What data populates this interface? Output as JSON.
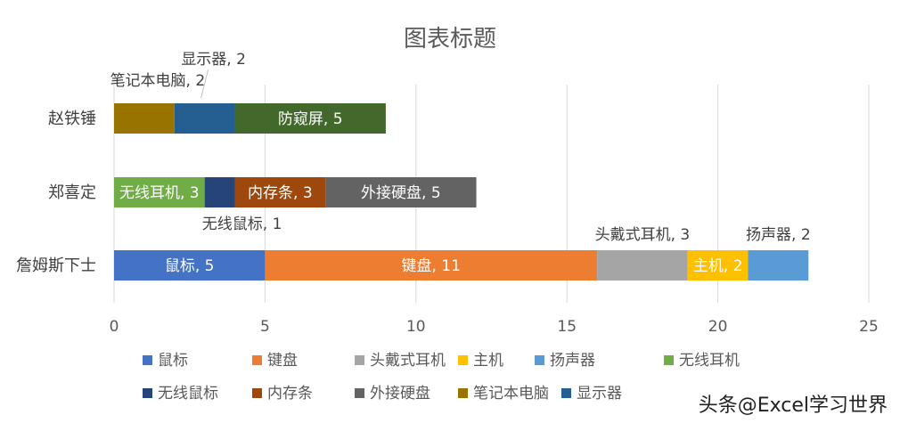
{
  "watermark": "头条@Excel学习世界",
  "chart_data": {
    "type": "bar",
    "orientation": "horizontal",
    "stacked": true,
    "title": "图表标题",
    "categories": [
      "詹姆斯下士",
      "郑喜定",
      "赵铁锤"
    ],
    "xlim": [
      0,
      25
    ],
    "xticks": [
      0,
      5,
      10,
      15,
      20,
      25
    ],
    "grid": true,
    "legend_position": "bottom",
    "series": [
      {
        "name": "鼠标",
        "color": "#4472C4",
        "values": [
          5,
          0,
          0
        ],
        "labels": [
          "鼠标, 5",
          "",
          ""
        ]
      },
      {
        "name": "键盘",
        "color": "#ED7D31",
        "values": [
          11,
          0,
          0
        ],
        "labels": [
          "键盘, 11",
          "",
          ""
        ]
      },
      {
        "name": "头戴式耳机",
        "color": "#A5A5A5",
        "values": [
          3,
          0,
          0
        ],
        "labels": [
          "头戴式耳机, 3",
          "",
          ""
        ]
      },
      {
        "name": "主机",
        "color": "#FFC000",
        "values": [
          2,
          0,
          0
        ],
        "labels": [
          "主机, 2",
          "",
          ""
        ]
      },
      {
        "name": "扬声器",
        "color": "#5B9BD5",
        "values": [
          2,
          0,
          0
        ],
        "labels": [
          "扬声器, 2",
          "",
          ""
        ]
      },
      {
        "name": "无线耳机",
        "color": "#70AD47",
        "values": [
          0,
          3,
          0
        ],
        "labels": [
          "",
          "无线耳机, 3",
          ""
        ]
      },
      {
        "name": "无线鼠标",
        "color": "#264478",
        "values": [
          0,
          1,
          0
        ],
        "labels": [
          "",
          "无线鼠标, 1",
          ""
        ]
      },
      {
        "name": "内存条",
        "color": "#9E480E",
        "values": [
          0,
          3,
          0
        ],
        "labels": [
          "",
          "内存条, 3",
          ""
        ]
      },
      {
        "name": "外接硬盘",
        "color": "#636363",
        "values": [
          0,
          5,
          0
        ],
        "labels": [
          "",
          "外接硬盘, 5",
          ""
        ]
      },
      {
        "name": "笔记本电脑",
        "color": "#997300",
        "values": [
          0,
          0,
          2
        ],
        "labels": [
          "",
          "",
          "笔记本电脑, 2"
        ]
      },
      {
        "name": "显示器",
        "color": "#255E91",
        "values": [
          0,
          0,
          2
        ],
        "labels": [
          "",
          "",
          "显示器, 2"
        ]
      },
      {
        "name": "防窥屏",
        "color": "#43682B",
        "values": [
          0,
          0,
          5
        ],
        "labels": [
          "",
          "",
          "防窥屏, 5"
        ]
      }
    ]
  }
}
